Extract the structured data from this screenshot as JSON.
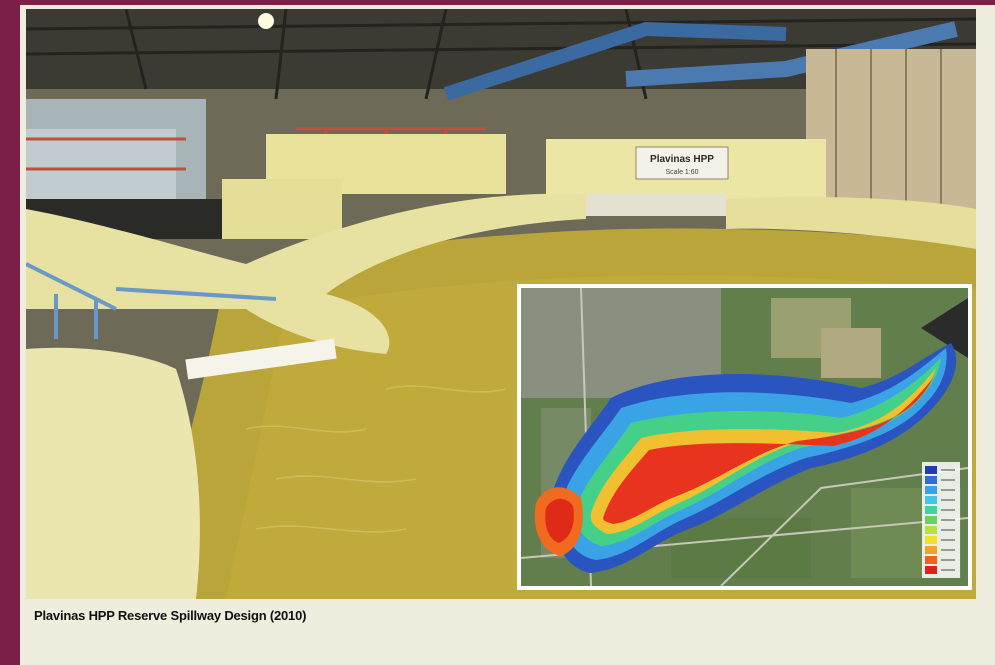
{
  "caption": "Plavinas HPP Reserve Spillway Design (2010)",
  "model_sign": {
    "line1": "Plavinas HPP",
    "line2": "Scale 1:60"
  },
  "legend_colors": [
    "#1f3fb0",
    "#2d6fd8",
    "#3aa0e8",
    "#44c6e6",
    "#3fd4a6",
    "#6fd060",
    "#b8e040",
    "#f0e030",
    "#f5a028",
    "#f06020",
    "#e02018"
  ]
}
